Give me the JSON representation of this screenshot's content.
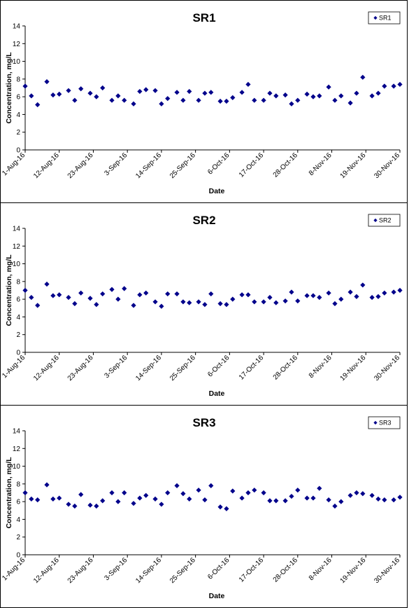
{
  "chart_data": [
    {
      "type": "scatter",
      "title": "SR1",
      "xlabel": "Date",
      "ylabel": "Concentration, mg/L",
      "ylim": [
        0,
        14
      ],
      "yticks": [
        0,
        2,
        4,
        6,
        8,
        10,
        12,
        14
      ],
      "xlim": [
        "2016-08-01",
        "2016-11-30"
      ],
      "xticks": [
        "1-Aug-16",
        "12-Aug-16",
        "23-Aug-16",
        "3-Sep-16",
        "14-Sep-16",
        "25-Sep-16",
        "6-Oct-16",
        "17-Oct-16",
        "28-Oct-16",
        "8-Nov-16",
        "19-Nov-16",
        "30-Nov-16"
      ],
      "grid": false,
      "legend": "top-right",
      "marker_color": "#00008B",
      "series": [
        {
          "name": "SR1",
          "x": [
            "2016-08-01",
            "2016-08-03",
            "2016-08-05",
            "2016-08-08",
            "2016-08-10",
            "2016-08-12",
            "2016-08-15",
            "2016-08-17",
            "2016-08-19",
            "2016-08-22",
            "2016-08-24",
            "2016-08-26",
            "2016-08-29",
            "2016-08-31",
            "2016-09-02",
            "2016-09-05",
            "2016-09-07",
            "2016-09-09",
            "2016-09-12",
            "2016-09-14",
            "2016-09-16",
            "2016-09-19",
            "2016-09-21",
            "2016-09-23",
            "2016-09-26",
            "2016-09-28",
            "2016-09-30",
            "2016-10-03",
            "2016-10-05",
            "2016-10-07",
            "2016-10-10",
            "2016-10-12",
            "2016-10-14",
            "2016-10-17",
            "2016-10-19",
            "2016-10-21",
            "2016-10-24",
            "2016-10-26",
            "2016-10-28",
            "2016-10-31",
            "2016-11-02",
            "2016-11-04",
            "2016-11-07",
            "2016-11-09",
            "2016-11-11",
            "2016-11-14",
            "2016-11-16",
            "2016-11-18",
            "2016-11-21",
            "2016-11-23",
            "2016-11-25",
            "2016-11-28",
            "2016-11-30"
          ],
          "y": [
            7.2,
            6.1,
            5.1,
            7.7,
            6.2,
            6.3,
            6.7,
            5.6,
            6.9,
            6.4,
            6.0,
            7.0,
            5.6,
            6.1,
            5.6,
            5.2,
            6.6,
            6.8,
            6.7,
            5.2,
            5.8,
            6.5,
            5.6,
            6.6,
            5.6,
            6.4,
            6.5,
            5.5,
            5.5,
            5.9,
            6.5,
            7.4,
            5.6,
            5.6,
            6.4,
            6.1,
            6.2,
            5.2,
            5.6,
            6.3,
            6.0,
            6.1,
            7.1,
            5.6,
            6.1,
            5.3,
            6.4,
            8.2,
            6.1,
            6.4,
            7.2,
            7.2,
            7.4
          ]
        }
      ]
    },
    {
      "type": "scatter",
      "title": "SR2",
      "xlabel": "Date",
      "ylabel": "Concentration, mg/L",
      "ylim": [
        0,
        14
      ],
      "yticks": [
        0,
        2,
        4,
        6,
        8,
        10,
        12,
        14
      ],
      "xlim": [
        "2016-08-01",
        "2016-11-30"
      ],
      "xticks": [
        "1-Aug-16",
        "12-Aug-16",
        "23-Aug-16",
        "3-Sep-16",
        "14-Sep-16",
        "25-Sep-16",
        "6-Oct-16",
        "17-Oct-16",
        "28-Oct-16",
        "8-Nov-16",
        "19-Nov-16",
        "30-Nov-16"
      ],
      "grid": false,
      "legend": "top-right",
      "marker_color": "#00008B",
      "series": [
        {
          "name": "SR2",
          "x": [
            "2016-08-01",
            "2016-08-03",
            "2016-08-05",
            "2016-08-08",
            "2016-08-10",
            "2016-08-12",
            "2016-08-15",
            "2016-08-17",
            "2016-08-19",
            "2016-08-22",
            "2016-08-24",
            "2016-08-26",
            "2016-08-29",
            "2016-08-31",
            "2016-09-02",
            "2016-09-05",
            "2016-09-07",
            "2016-09-09",
            "2016-09-12",
            "2016-09-14",
            "2016-09-16",
            "2016-09-19",
            "2016-09-21",
            "2016-09-23",
            "2016-09-26",
            "2016-09-28",
            "2016-09-30",
            "2016-10-03",
            "2016-10-05",
            "2016-10-07",
            "2016-10-10",
            "2016-10-12",
            "2016-10-14",
            "2016-10-17",
            "2016-10-19",
            "2016-10-21",
            "2016-10-24",
            "2016-10-26",
            "2016-10-28",
            "2016-10-31",
            "2016-11-02",
            "2016-11-04",
            "2016-11-07",
            "2016-11-09",
            "2016-11-11",
            "2016-11-14",
            "2016-11-16",
            "2016-11-18",
            "2016-11-21",
            "2016-11-23",
            "2016-11-25",
            "2016-11-28",
            "2016-11-30"
          ],
          "y": [
            7.0,
            6.2,
            5.3,
            7.7,
            6.4,
            6.5,
            6.2,
            5.5,
            6.7,
            6.1,
            5.4,
            6.6,
            7.1,
            6.0,
            7.2,
            5.3,
            6.5,
            6.7,
            5.7,
            5.2,
            6.6,
            6.6,
            5.7,
            5.6,
            5.7,
            5.4,
            6.6,
            5.5,
            5.4,
            6.0,
            6.5,
            6.5,
            5.7,
            5.7,
            6.2,
            5.6,
            5.8,
            6.8,
            5.8,
            6.4,
            6.4,
            6.2,
            6.7,
            5.5,
            6.0,
            6.8,
            6.3,
            7.6,
            6.2,
            6.3,
            6.7,
            6.8,
            7.0
          ]
        }
      ]
    },
    {
      "type": "scatter",
      "title": "SR3",
      "xlabel": "Date",
      "ylabel": "Concentration, mg/L",
      "ylim": [
        0,
        14
      ],
      "yticks": [
        0,
        2,
        4,
        6,
        8,
        10,
        12,
        14
      ],
      "xlim": [
        "2016-08-01",
        "2016-11-30"
      ],
      "xticks": [
        "1-Aug-16",
        "12-Aug-16",
        "23-Aug-16",
        "3-Sep-16",
        "14-Sep-16",
        "25-Sep-16",
        "6-Oct-16",
        "17-Oct-16",
        "28-Oct-16",
        "8-Nov-16",
        "19-Nov-16",
        "30-Nov-16"
      ],
      "grid": false,
      "legend": "top-right",
      "marker_color": "#00008B",
      "series": [
        {
          "name": "SR3",
          "x": [
            "2016-08-01",
            "2016-08-03",
            "2016-08-05",
            "2016-08-08",
            "2016-08-10",
            "2016-08-12",
            "2016-08-15",
            "2016-08-17",
            "2016-08-19",
            "2016-08-22",
            "2016-08-24",
            "2016-08-26",
            "2016-08-29",
            "2016-08-31",
            "2016-09-02",
            "2016-09-05",
            "2016-09-07",
            "2016-09-09",
            "2016-09-12",
            "2016-09-14",
            "2016-09-16",
            "2016-09-19",
            "2016-09-21",
            "2016-09-23",
            "2016-09-26",
            "2016-09-28",
            "2016-09-30",
            "2016-10-03",
            "2016-10-05",
            "2016-10-07",
            "2016-10-10",
            "2016-10-12",
            "2016-10-14",
            "2016-10-17",
            "2016-10-19",
            "2016-10-21",
            "2016-10-24",
            "2016-10-26",
            "2016-10-28",
            "2016-10-31",
            "2016-11-02",
            "2016-11-04",
            "2016-11-07",
            "2016-11-09",
            "2016-11-11",
            "2016-11-14",
            "2016-11-16",
            "2016-11-18",
            "2016-11-21",
            "2016-11-23",
            "2016-11-25",
            "2016-11-28",
            "2016-11-30"
          ],
          "y": [
            7.0,
            6.3,
            6.2,
            7.9,
            6.3,
            6.4,
            5.7,
            5.5,
            6.8,
            5.6,
            5.5,
            6.1,
            7.0,
            6.0,
            7.0,
            5.8,
            6.4,
            6.7,
            6.3,
            5.7,
            7.0,
            7.8,
            6.9,
            6.3,
            7.3,
            6.2,
            7.8,
            5.4,
            5.2,
            7.2,
            6.4,
            7.0,
            7.3,
            7.0,
            6.1,
            6.1,
            6.1,
            6.6,
            7.3,
            6.4,
            6.4,
            7.5,
            6.2,
            5.5,
            6.0,
            6.7,
            7.0,
            6.9,
            6.7,
            6.3,
            6.2,
            6.2,
            6.5
          ]
        }
      ]
    }
  ]
}
